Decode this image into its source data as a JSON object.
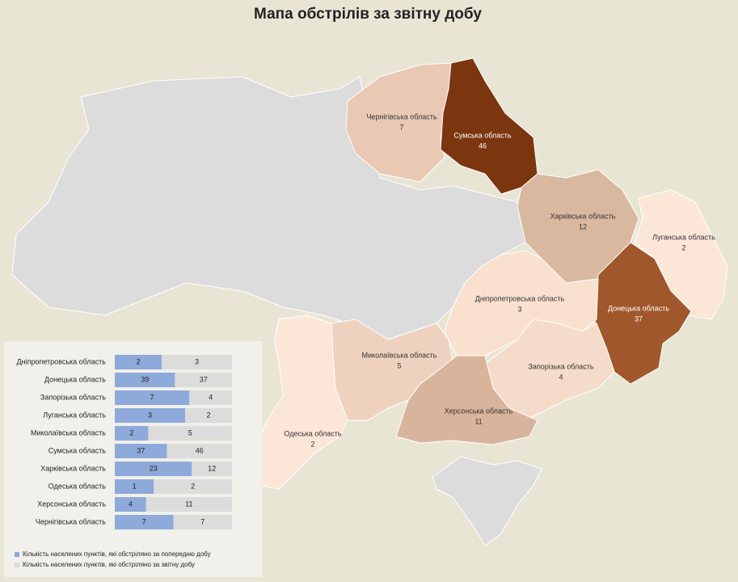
{
  "title": "Мапа обстрілів за звітну добу",
  "map": {
    "regions": [
      {
        "name": "Чернігівська область",
        "value": 7,
        "color": "#e9c9b3"
      },
      {
        "name": "Сумська область",
        "value": 46,
        "color": "#7b360f"
      },
      {
        "name": "Харківська область",
        "value": 12,
        "color": "#d9b8a0"
      },
      {
        "name": "Луганська область",
        "value": 2,
        "color": "#fbe6d8"
      },
      {
        "name": "Донецька область",
        "value": 37,
        "color": "#a0572b"
      },
      {
        "name": "Дніпропетровська область",
        "value": 3,
        "color": "#f9e0cf"
      },
      {
        "name": "Запорізька область",
        "value": 4,
        "color": "#f5dbc9"
      },
      {
        "name": "Миколаївська область",
        "value": 5,
        "color": "#eed2bf"
      },
      {
        "name": "Херсонська область",
        "value": 11,
        "color": "#d9b49c"
      },
      {
        "name": "Одеська область",
        "value": 2,
        "color": "#fbe6d8"
      }
    ]
  },
  "chart_data": {
    "type": "bar",
    "stacking": "percent",
    "categories": [
      "Дніпропетровська область",
      "Донецька область",
      "Запорізька область",
      "Луганська область",
      "Миколаївська область",
      "Сумська область",
      "Харківська область",
      "Одеська область",
      "Херсонська область",
      "Чернігівська область"
    ],
    "series": [
      {
        "name": "Кількість населених пунктів, які обстріляно за попередню добу",
        "color": "#8eaadb",
        "values": [
          2,
          39,
          7,
          3,
          2,
          37,
          23,
          1,
          4,
          7
        ]
      },
      {
        "name": "Кількість населених пунктів, які обстріляно за звітну добу",
        "color": "#dcdcdc",
        "values": [
          3,
          37,
          4,
          2,
          5,
          46,
          12,
          2,
          11,
          7
        ]
      }
    ]
  }
}
